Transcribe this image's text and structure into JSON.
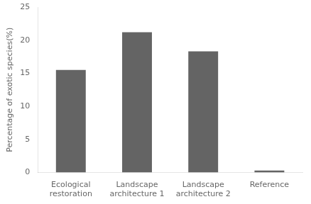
{
  "chart_data": {
    "type": "bar",
    "ylabel": "Percentage of exotic species(%)",
    "categories": [
      "Ecological\nrestoration",
      "Landscape\narchitecture 1",
      "Landscape\narchitecture 2",
      "Reference"
    ],
    "values": [
      15.5,
      21.2,
      18.3,
      0.3
    ],
    "color": "#646464",
    "ylim": [
      0,
      25
    ],
    "yticks": [
      0,
      5,
      10,
      15,
      20,
      25
    ],
    "grid": false
  }
}
